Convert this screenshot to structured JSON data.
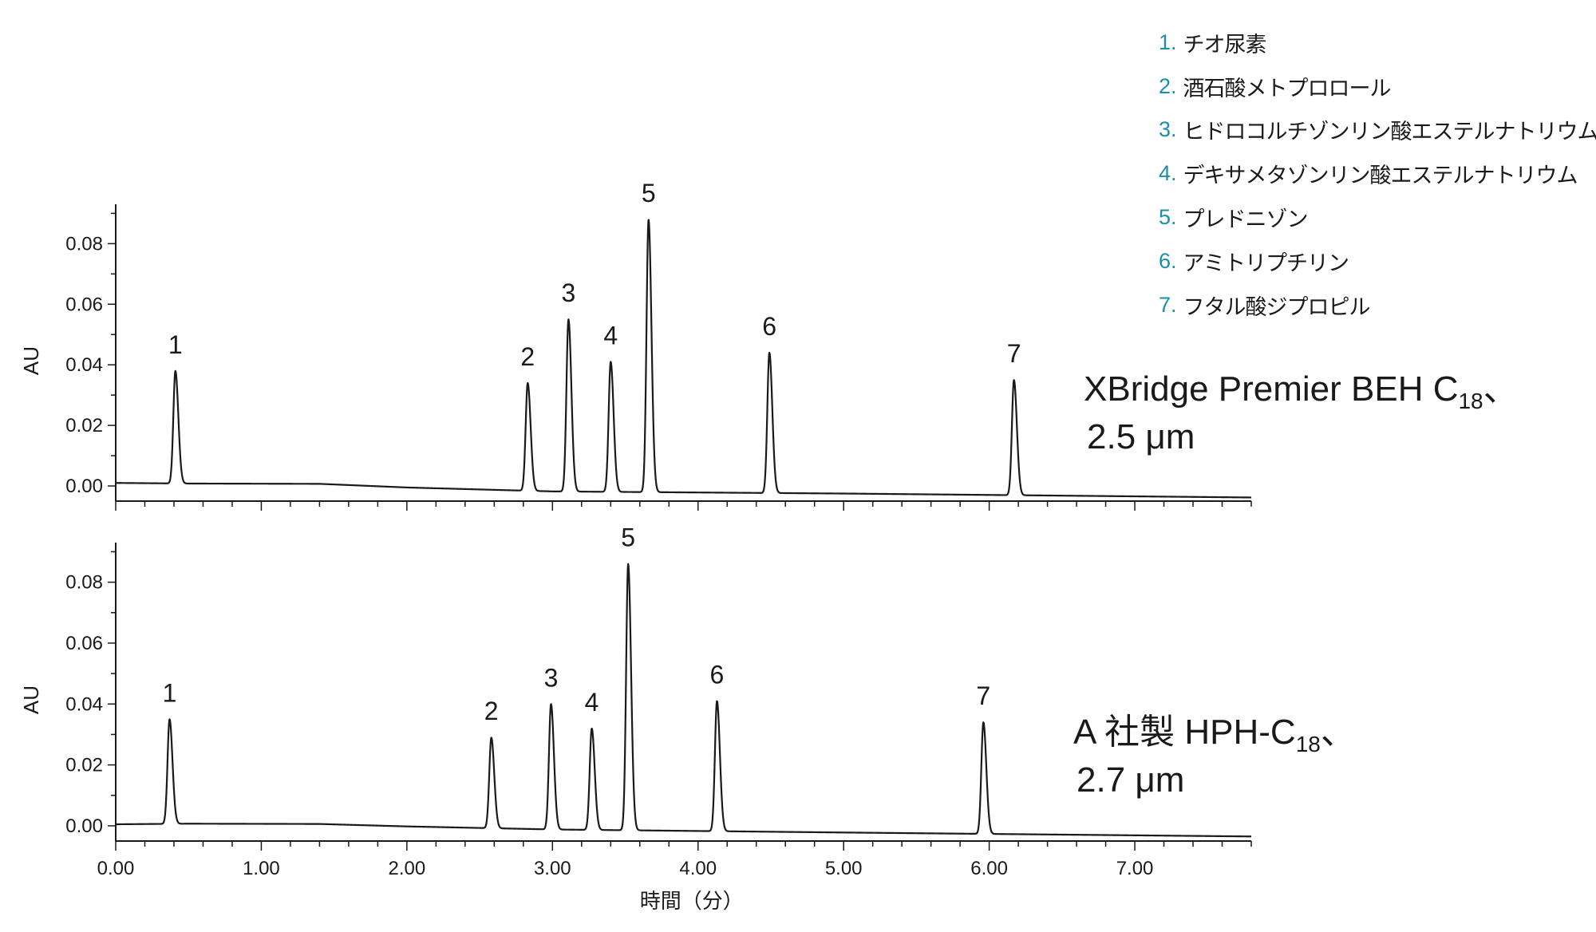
{
  "legend": [
    {
      "num": "1.",
      "name": "チオ尿素"
    },
    {
      "num": "2.",
      "name": "酒石酸メトプロロール"
    },
    {
      "num": "3.",
      "name": "ヒドロコルチゾンリン酸エステルナトリウム"
    },
    {
      "num": "4.",
      "name": "デキサメタゾンリン酸エステルナトリウム"
    },
    {
      "num": "5.",
      "name": "プレドニゾン"
    },
    {
      "num": "6.",
      "name": "アミトリプチリン"
    },
    {
      "num": "7.",
      "name": "フタル酸ジプロピル"
    }
  ],
  "colors": {
    "legend_number": "#1a8fa8",
    "trace": "#1a1a1a",
    "axis": "#1a1a1a"
  },
  "chart_data": [
    {
      "type": "line",
      "column_label": {
        "line1_main": "XBridge Premier BEH C",
        "line1_sub": "18",
        "line1_end": "、",
        "line2": "2.5 μm"
      },
      "ylabel": "AU",
      "xlim": [
        0,
        7.8
      ],
      "ylim": [
        -0.005,
        0.093
      ],
      "yticks": [
        0.0,
        0.02,
        0.04,
        0.06,
        0.08
      ],
      "ytick_labels": [
        "0.00",
        "0.02",
        "0.04",
        "0.06",
        "0.08"
      ],
      "baseline": [
        [
          0,
          0.001
        ],
        [
          0.5,
          0.0008
        ],
        [
          1.4,
          0.0007
        ],
        [
          2.0,
          -0.0005
        ],
        [
          3.0,
          -0.0018
        ],
        [
          5.0,
          -0.0025
        ],
        [
          7.8,
          -0.0038
        ]
      ],
      "peaks": [
        {
          "label": "1",
          "rt": 0.41,
          "height": 0.038
        },
        {
          "label": "2",
          "rt": 2.83,
          "height": 0.034
        },
        {
          "label": "3",
          "rt": 3.11,
          "height": 0.055
        },
        {
          "label": "4",
          "rt": 3.4,
          "height": 0.041
        },
        {
          "label": "5",
          "rt": 3.66,
          "height": 0.088
        },
        {
          "label": "6",
          "rt": 4.49,
          "height": 0.044
        },
        {
          "label": "7",
          "rt": 6.17,
          "height": 0.035
        }
      ]
    },
    {
      "type": "line",
      "column_label": {
        "line1_main": "A 社製 HPH-C",
        "line1_sub": "18",
        "line1_end": "、",
        "line2": "2.7 μm"
      },
      "ylabel": "AU",
      "xlabel": "時間（分）",
      "xlim": [
        0,
        7.8
      ],
      "ylim": [
        -0.005,
        0.093
      ],
      "yticks": [
        0.0,
        0.02,
        0.04,
        0.06,
        0.08
      ],
      "ytick_labels": [
        "0.00",
        "0.02",
        "0.04",
        "0.06",
        "0.08"
      ],
      "xticks": [
        0,
        1,
        2,
        3,
        4,
        5,
        6,
        7
      ],
      "xtick_labels": [
        "0.00",
        "1.00",
        "2.00",
        "3.00",
        "4.00",
        "5.00",
        "6.00",
        "7.00"
      ],
      "baseline": [
        [
          0,
          0.0005
        ],
        [
          0.5,
          0.0007
        ],
        [
          1.4,
          0.0006
        ],
        [
          2.0,
          -0.0002
        ],
        [
          3.0,
          -0.0012
        ],
        [
          5.0,
          -0.0022
        ],
        [
          7.8,
          -0.0035
        ]
      ],
      "peaks": [
        {
          "label": "1",
          "rt": 0.37,
          "height": 0.035
        },
        {
          "label": "2",
          "rt": 2.58,
          "height": 0.029
        },
        {
          "label": "3",
          "rt": 2.99,
          "height": 0.04
        },
        {
          "label": "4",
          "rt": 3.27,
          "height": 0.032
        },
        {
          "label": "5",
          "rt": 3.52,
          "height": 0.086
        },
        {
          "label": "6",
          "rt": 4.13,
          "height": 0.041
        },
        {
          "label": "7",
          "rt": 5.96,
          "height": 0.034
        }
      ]
    }
  ]
}
